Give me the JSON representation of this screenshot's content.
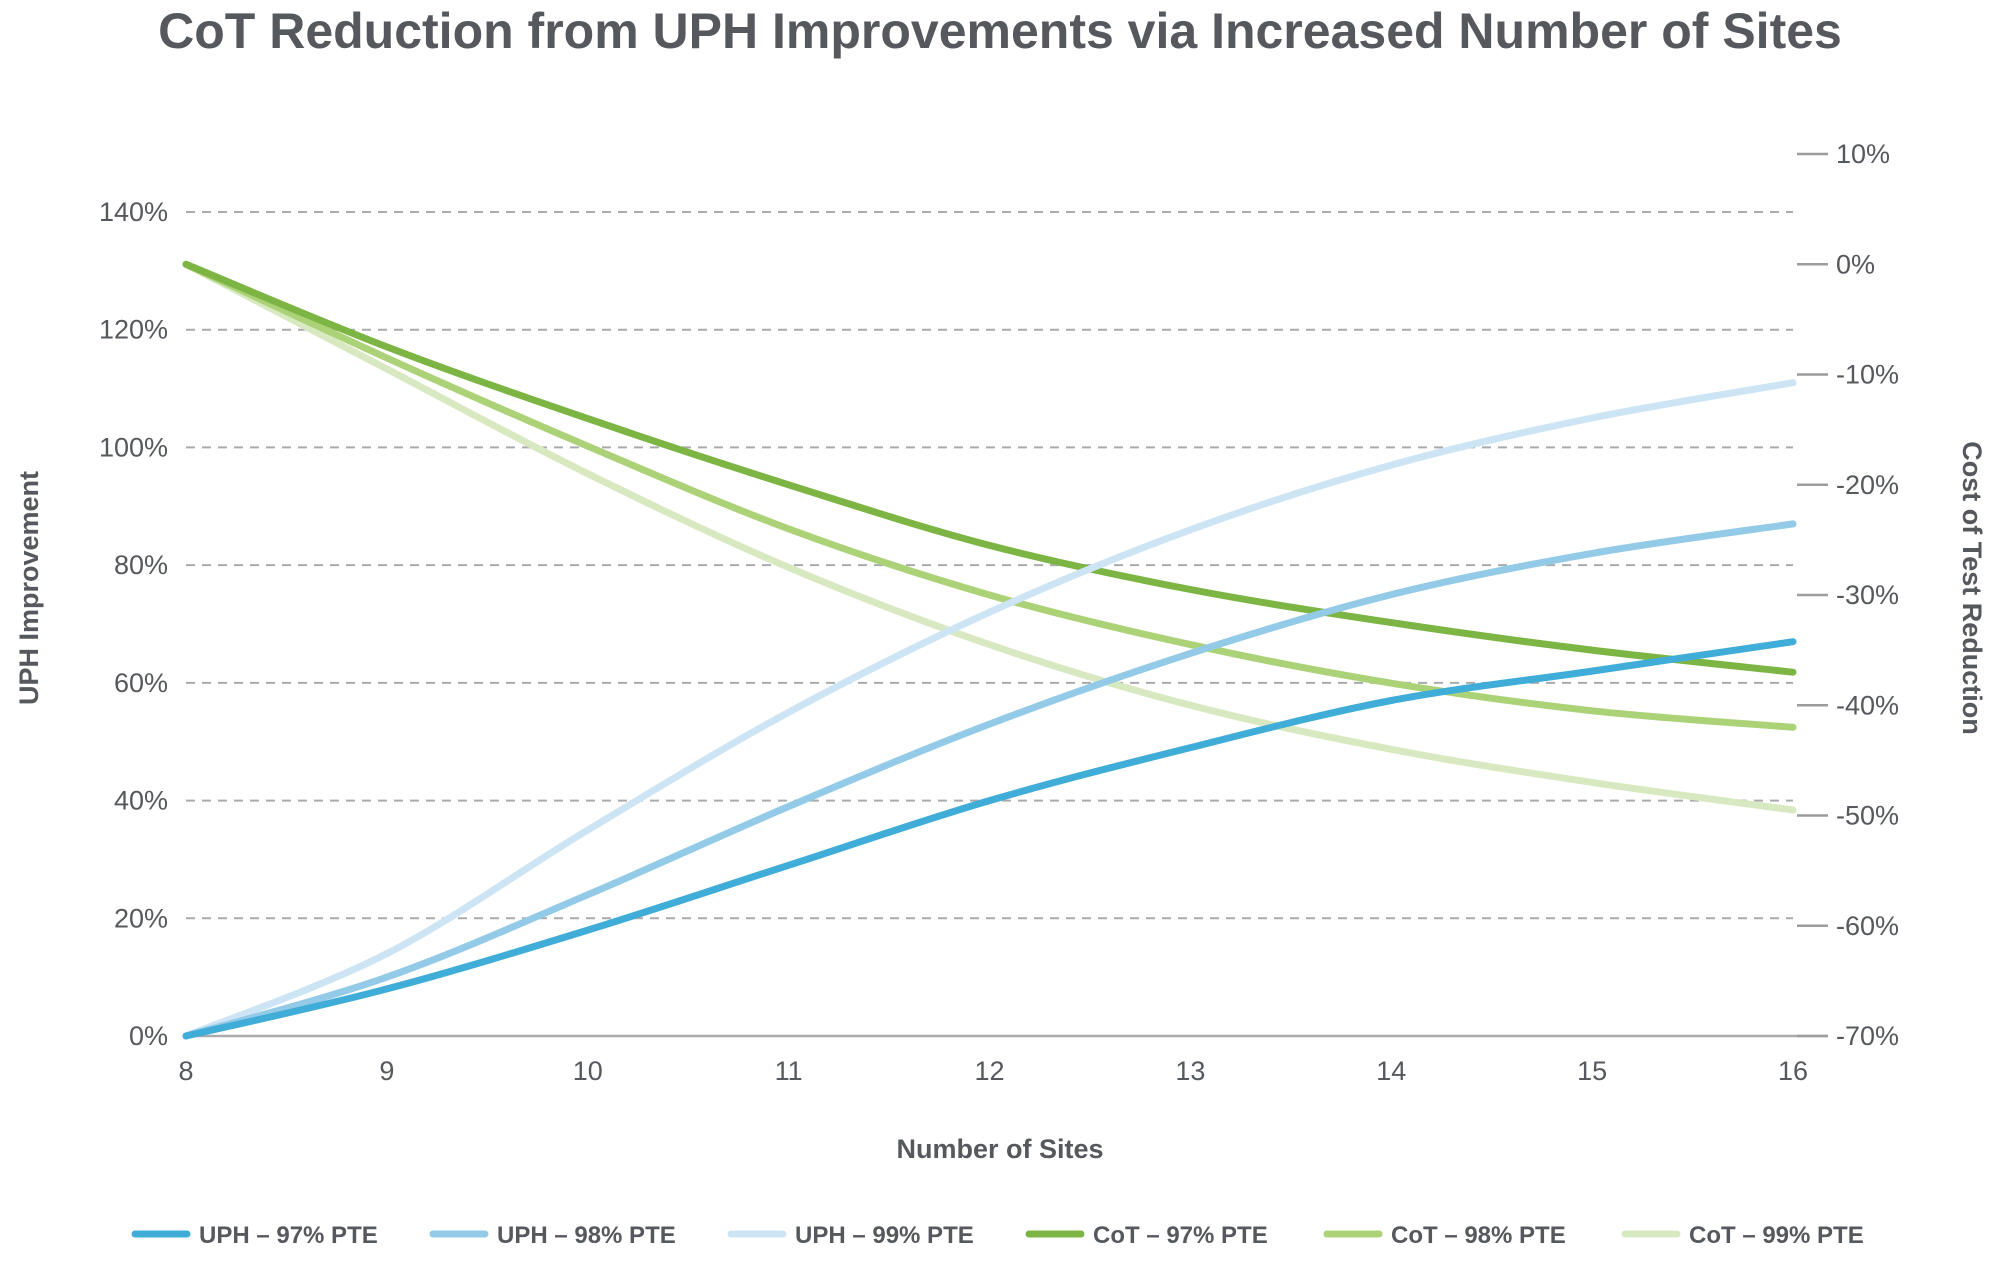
{
  "chart_data": {
    "type": "line",
    "title": "CoT Reduction from UPH Improvements via Increased Number of Sites",
    "xlabel": "Number of Sites",
    "ylabel": "UPH Improvement",
    "y2label": "Cost of Test Reduction",
    "x": [
      8,
      9,
      10,
      11,
      12,
      13,
      14,
      15,
      16
    ],
    "xlim": [
      8,
      16
    ],
    "ylim": [
      0,
      140
    ],
    "y2lim": [
      -70,
      10
    ],
    "y_ticks": [
      "0%",
      "20%",
      "40%",
      "60%",
      "80%",
      "100%",
      "120%",
      "140%"
    ],
    "y2_ticks": [
      "-70%",
      "-60%",
      "-50%",
      "-40%",
      "-30%",
      "-20%",
      "-10%",
      "0%",
      "10%"
    ],
    "x_ticks": [
      "8",
      "9",
      "10",
      "11",
      "12",
      "13",
      "14",
      "15",
      "16"
    ],
    "grid": true,
    "legend_position": "bottom",
    "series": [
      {
        "name": "UPH – 97% PTE",
        "axis": "left",
        "color": "#3fadd8",
        "values": [
          0,
          8,
          18,
          29,
          40,
          49,
          57,
          62,
          67
        ]
      },
      {
        "name": "UPH – 98% PTE",
        "axis": "left",
        "color": "#93cae7",
        "values": [
          0,
          10,
          24,
          39,
          53,
          65,
          75,
          82,
          87
        ]
      },
      {
        "name": "UPH – 99% PTE",
        "axis": "left",
        "color": "#cce4f4",
        "values": [
          0,
          14,
          35,
          55,
          72,
          86,
          97,
          105,
          111
        ]
      },
      {
        "name": "CoT – 97% PTE",
        "axis": "right",
        "color": "#7db544",
        "values": [
          0,
          -7.5,
          -14,
          -20,
          -25.5,
          -29.5,
          -32.5,
          -35,
          -37
        ]
      },
      {
        "name": "CoT – 98% PTE",
        "axis": "right",
        "color": "#acd278",
        "values": [
          0,
          -8.5,
          -16.5,
          -24,
          -30,
          -34.5,
          -38,
          -40.5,
          -42
        ]
      },
      {
        "name": "CoT – 99% PTE",
        "axis": "right",
        "color": "#d8e9c1",
        "values": [
          0,
          -9.5,
          -19,
          -27.5,
          -34.5,
          -40,
          -44,
          -47,
          -49.5
        ]
      }
    ]
  }
}
